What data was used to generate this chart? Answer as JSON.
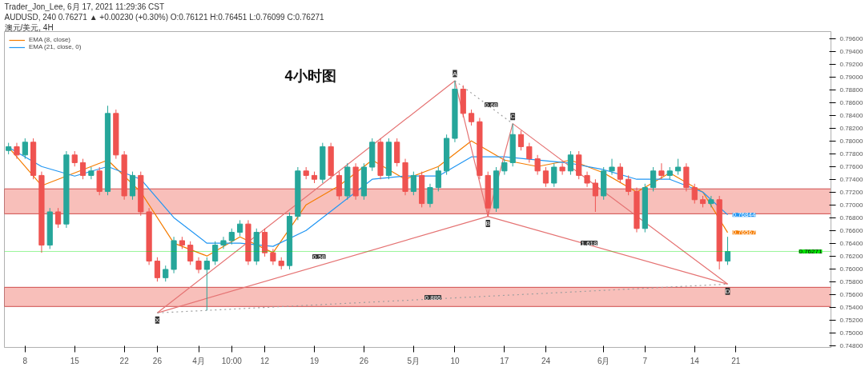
{
  "chart_data": {
    "type": "candlestick",
    "title": "4小时图",
    "categories": [
      null,
      null,
      "8",
      null,
      null,
      null,
      null,
      null,
      "15",
      null,
      null,
      null,
      null,
      null,
      "22",
      null,
      null,
      null,
      "26",
      null,
      null,
      null,
      null,
      "4月",
      null,
      null,
      null,
      "10:00",
      null,
      null,
      null,
      "12",
      null,
      null,
      null,
      null,
      null,
      "19",
      null,
      null,
      null,
      null,
      null,
      "26",
      null,
      null,
      null,
      null,
      null,
      "5月",
      null,
      null,
      null,
      null,
      "10",
      null,
      null,
      null,
      null,
      null,
      "17",
      null,
      null,
      null,
      null,
      "24",
      null,
      null,
      null,
      null,
      null,
      null,
      "6月",
      null,
      null,
      null,
      null,
      "7",
      null,
      null,
      null,
      null,
      null,
      "14",
      null,
      null,
      null,
      null,
      "21",
      null,
      null,
      null,
      null,
      null,
      null,
      null,
      null,
      null,
      null,
      null
    ],
    "ohlc": [
      [
        0.7785,
        0.7797,
        0.7779,
        0.7791
      ],
      [
        0.7791,
        0.7797,
        0.7772,
        0.7778
      ],
      [
        0.7778,
        0.7804,
        0.7772,
        0.7798
      ],
      [
        0.7798,
        0.7804,
        0.774,
        0.7746
      ],
      [
        0.7746,
        0.7752,
        0.7625,
        0.7637
      ],
      [
        0.7637,
        0.7695,
        0.7631,
        0.7689
      ],
      [
        0.7689,
        0.7695,
        0.7664,
        0.767
      ],
      [
        0.767,
        0.7784,
        0.7664,
        0.7778
      ],
      [
        0.7778,
        0.7784,
        0.776,
        0.7766
      ],
      [
        0.7766,
        0.7772,
        0.774,
        0.7746
      ],
      [
        0.7746,
        0.7759,
        0.774,
        0.7753
      ],
      [
        0.7753,
        0.7759,
        0.7715,
        0.7721
      ],
      [
        0.7721,
        0.7855,
        0.7715,
        0.7843
      ],
      [
        0.7843,
        0.7849,
        0.7772,
        0.7778
      ],
      [
        0.7778,
        0.7784,
        0.7708,
        0.7714
      ],
      [
        0.7714,
        0.7752,
        0.7708,
        0.7746
      ],
      [
        0.7746,
        0.7752,
        0.7683,
        0.7689
      ],
      [
        0.7689,
        0.7695,
        0.7606,
        0.7612
      ],
      [
        0.7612,
        0.7618,
        0.758,
        0.7586
      ],
      [
        0.7586,
        0.7605,
        0.758,
        0.7599
      ],
      [
        0.7599,
        0.765,
        0.7593,
        0.7644
      ],
      [
        0.7644,
        0.765,
        0.7631,
        0.7637
      ],
      [
        0.7637,
        0.7643,
        0.7606,
        0.7612
      ],
      [
        0.7612,
        0.7618,
        0.7593,
        0.7599
      ],
      [
        0.7599,
        0.7618,
        0.7535,
        0.7612
      ],
      [
        0.7612,
        0.7643,
        0.7606,
        0.7637
      ],
      [
        0.7637,
        0.765,
        0.7631,
        0.7644
      ],
      [
        0.7644,
        0.7663,
        0.7638,
        0.7657
      ],
      [
        0.7657,
        0.7676,
        0.7651,
        0.767
      ],
      [
        0.767,
        0.7676,
        0.7606,
        0.7612
      ],
      [
        0.7612,
        0.7663,
        0.7606,
        0.7657
      ],
      [
        0.7657,
        0.7663,
        0.7619,
        0.7625
      ],
      [
        0.7625,
        0.7631,
        0.7606,
        0.7612
      ],
      [
        0.7612,
        0.7618,
        0.7599,
        0.7605
      ],
      [
        0.7605,
        0.7688,
        0.7599,
        0.7682
      ],
      [
        0.7682,
        0.7759,
        0.7676,
        0.7753
      ],
      [
        0.7753,
        0.7759,
        0.774,
        0.7746
      ],
      [
        0.7746,
        0.7752,
        0.7734,
        0.774
      ],
      [
        0.774,
        0.7797,
        0.7734,
        0.7791
      ],
      [
        0.7791,
        0.7797,
        0.774,
        0.7746
      ],
      [
        0.7746,
        0.7752,
        0.7708,
        0.7714
      ],
      [
        0.7714,
        0.7765,
        0.7708,
        0.7759
      ],
      [
        0.7759,
        0.7765,
        0.7708,
        0.7714
      ],
      [
        0.7714,
        0.7765,
        0.7708,
        0.7759
      ],
      [
        0.7759,
        0.7804,
        0.7753,
        0.7798
      ],
      [
        0.7798,
        0.7804,
        0.774,
        0.7746
      ],
      [
        0.7746,
        0.7804,
        0.774,
        0.7798
      ],
      [
        0.7798,
        0.7804,
        0.776,
        0.7766
      ],
      [
        0.7766,
        0.7772,
        0.7715,
        0.7721
      ],
      [
        0.7721,
        0.7752,
        0.7715,
        0.7746
      ],
      [
        0.7746,
        0.7752,
        0.7696,
        0.7702
      ],
      [
        0.7702,
        0.7733,
        0.7696,
        0.7727
      ],
      [
        0.7727,
        0.7759,
        0.7721,
        0.7753
      ],
      [
        0.7753,
        0.781,
        0.7747,
        0.7804
      ],
      [
        0.7804,
        0.7894,
        0.7798,
        0.7881
      ],
      [
        0.7881,
        0.7887,
        0.7837,
        0.7843
      ],
      [
        0.7843,
        0.7849,
        0.7824,
        0.783
      ],
      [
        0.783,
        0.7836,
        0.774,
        0.7746
      ],
      [
        0.7746,
        0.7752,
        0.7682,
        0.7695
      ],
      [
        0.7695,
        0.7759,
        0.7689,
        0.7753
      ],
      [
        0.7753,
        0.7772,
        0.7747,
        0.7766
      ],
      [
        0.7766,
        0.7827,
        0.776,
        0.781
      ],
      [
        0.781,
        0.7816,
        0.7785,
        0.7791
      ],
      [
        0.7791,
        0.7797,
        0.7766,
        0.7772
      ],
      [
        0.7772,
        0.7778,
        0.7747,
        0.7753
      ],
      [
        0.7753,
        0.7759,
        0.7728,
        0.7734
      ],
      [
        0.7734,
        0.7765,
        0.7728,
        0.7759
      ],
      [
        0.7759,
        0.7765,
        0.7747,
        0.7753
      ],
      [
        0.7753,
        0.7784,
        0.7747,
        0.7778
      ],
      [
        0.7778,
        0.7784,
        0.774,
        0.7746
      ],
      [
        0.7746,
        0.7752,
        0.7728,
        0.7734
      ],
      [
        0.7734,
        0.774,
        0.7689,
        0.7714
      ],
      [
        0.7714,
        0.7759,
        0.7708,
        0.7753
      ],
      [
        0.7753,
        0.7772,
        0.7747,
        0.7759
      ],
      [
        0.7759,
        0.7765,
        0.7734,
        0.774
      ],
      [
        0.774,
        0.7746,
        0.7715,
        0.7721
      ],
      [
        0.7721,
        0.7727,
        0.7657,
        0.7663
      ],
      [
        0.7663,
        0.7733,
        0.7657,
        0.7727
      ],
      [
        0.7727,
        0.7759,
        0.7721,
        0.7753
      ],
      [
        0.7753,
        0.7765,
        0.774,
        0.7746
      ],
      [
        0.7746,
        0.7759,
        0.774,
        0.7753
      ],
      [
        0.7753,
        0.7772,
        0.7747,
        0.7759
      ],
      [
        0.7759,
        0.7765,
        0.7721,
        0.7727
      ],
      [
        0.7727,
        0.7733,
        0.7702,
        0.7708
      ],
      [
        0.7708,
        0.7714,
        0.7696,
        0.7702
      ],
      [
        0.7702,
        0.7714,
        0.7696,
        0.7708
      ],
      [
        0.7708,
        0.7714,
        0.7599,
        0.7612
      ],
      [
        0.7612,
        0.765,
        0.7606,
        0.7627
      ],
      null,
      null,
      null,
      null,
      null,
      null,
      null,
      null,
      null,
      null,
      null,
      null
    ],
    "series": [
      {
        "name": "EMA (8, close)",
        "type": "line",
        "color": "#f57c00",
        "values": [
          0.779,
          null,
          null,
          null,
          0.773,
          null,
          null,
          null,
          0.775,
          null,
          null,
          null,
          0.777,
          null,
          null,
          null,
          0.772,
          null,
          null,
          null,
          0.764,
          null,
          null,
          null,
          0.762,
          null,
          null,
          null,
          0.765,
          null,
          null,
          null,
          0.7625,
          null,
          null,
          null,
          0.77,
          null,
          null,
          null,
          0.773,
          null,
          null,
          null,
          0.777,
          null,
          null,
          null,
          0.774,
          null,
          null,
          null,
          0.776,
          null,
          null,
          null,
          0.78,
          null,
          null,
          null,
          0.777,
          null,
          null,
          null,
          0.776,
          null,
          null,
          null,
          0.777,
          null,
          null,
          null,
          0.775,
          null,
          null,
          null,
          0.772,
          null,
          null,
          null,
          0.775,
          null,
          null,
          null,
          0.772,
          null,
          null,
          0.76567,
          null,
          null,
          null,
          null,
          null,
          null,
          null,
          null,
          null,
          null,
          null,
          null
        ],
        "value_labels": [
          null,
          null,
          null,
          null,
          null,
          null,
          null,
          null,
          null,
          null,
          null,
          null,
          null,
          null,
          null,
          null,
          null,
          null,
          null,
          null,
          null,
          null,
          null,
          null,
          null,
          null,
          null,
          null,
          null,
          null,
          null,
          null,
          null,
          null,
          null,
          null,
          null,
          null,
          null,
          null,
          null,
          null,
          null,
          null,
          null,
          null,
          null,
          null,
          null,
          null,
          null,
          null,
          null,
          null,
          null,
          null,
          null,
          null,
          null,
          null,
          null,
          null,
          null,
          null,
          null,
          null,
          null,
          null,
          null,
          null,
          null,
          null,
          null,
          null,
          null,
          null,
          null,
          null,
          null,
          null,
          null,
          null,
          null,
          null,
          null,
          null,
          null,
          "0.76567",
          null,
          null,
          null,
          null,
          null,
          null,
          null,
          null,
          null,
          null,
          null,
          null
        ]
      },
      {
        "name": "EMA (21, close, 0)",
        "type": "line",
        "color": "#2196f3",
        "values": [
          0.779,
          null,
          null,
          null,
          0.776,
          null,
          null,
          null,
          0.7745,
          null,
          null,
          null,
          0.776,
          null,
          null,
          null,
          0.774,
          null,
          null,
          null,
          0.768,
          null,
          null,
          null,
          0.764,
          null,
          null,
          null,
          0.764,
          null,
          null,
          null,
          0.7635,
          null,
          null,
          null,
          0.766,
          null,
          null,
          null,
          0.77,
          null,
          null,
          null,
          0.774,
          null,
          null,
          null,
          0.7745,
          null,
          null,
          null,
          0.7745,
          null,
          null,
          null,
          0.7775,
          null,
          null,
          null,
          0.7775,
          null,
          null,
          null,
          0.777,
          null,
          null,
          null,
          0.7765,
          null,
          null,
          null,
          0.7755,
          null,
          null,
          null,
          0.774,
          null,
          null,
          null,
          0.774,
          null,
          null,
          null,
          0.772,
          null,
          null,
          0.76844,
          null,
          null,
          null,
          null,
          null,
          null,
          null,
          null,
          null,
          null,
          null,
          null
        ],
        "value_labels": [
          null,
          null,
          null,
          null,
          null,
          null,
          null,
          null,
          null,
          null,
          null,
          null,
          null,
          null,
          null,
          null,
          null,
          null,
          null,
          null,
          null,
          null,
          null,
          null,
          null,
          null,
          null,
          null,
          null,
          null,
          null,
          null,
          null,
          null,
          null,
          null,
          null,
          null,
          null,
          null,
          null,
          null,
          null,
          null,
          null,
          null,
          null,
          null,
          null,
          null,
          null,
          null,
          null,
          null,
          null,
          null,
          null,
          null,
          null,
          null,
          null,
          null,
          null,
          null,
          null,
          null,
          null,
          null,
          null,
          null,
          null,
          null,
          null,
          null,
          null,
          null,
          null,
          null,
          null,
          null,
          null,
          null,
          null,
          null,
          null,
          null,
          null,
          "0.76844",
          null,
          null,
          null,
          null,
          null,
          null,
          null,
          null,
          null,
          null,
          null,
          null
        ]
      },
      {
        "type": "line",
        "color": "#e57373",
        "values": [
          null,
          null,
          null,
          null,
          null,
          null,
          null,
          null,
          null,
          null,
          null,
          null,
          null,
          null,
          null,
          null,
          null,
          null,
          0.7531,
          null,
          null,
          null,
          null,
          null,
          null,
          null,
          null,
          null,
          null,
          null,
          null,
          null,
          null,
          null,
          null,
          null,
          null,
          null,
          null,
          null,
          null,
          null,
          null,
          null,
          null,
          null,
          null,
          null,
          null,
          null,
          null,
          null,
          null,
          null,
          0.7894,
          null,
          null,
          null,
          0.7682,
          null,
          null,
          0.7827,
          null,
          null,
          null,
          null,
          null,
          null,
          null,
          null,
          null,
          null,
          null,
          null,
          null,
          null,
          null,
          null,
          null,
          null,
          null,
          null,
          null,
          null,
          null,
          null,
          null,
          0.7576,
          null,
          null,
          null,
          null,
          null,
          null,
          null,
          null,
          null,
          null,
          null,
          null
        ],
        "value_labels": [
          null,
          null,
          null,
          null,
          null,
          null,
          null,
          null,
          null,
          null,
          null,
          null,
          null,
          null,
          null,
          null,
          null,
          null,
          "X",
          null,
          null,
          null,
          null,
          null,
          null,
          null,
          null,
          null,
          null,
          null,
          null,
          null,
          null,
          null,
          null,
          null,
          null,
          null,
          null,
          null,
          null,
          null,
          null,
          null,
          null,
          null,
          null,
          null,
          null,
          null,
          null,
          null,
          null,
          null,
          "A",
          null,
          null,
          null,
          "B",
          null,
          null,
          "C",
          null,
          null,
          null,
          null,
          null,
          null,
          null,
          null,
          null,
          null,
          null,
          null,
          null,
          null,
          null,
          null,
          null,
          null,
          null,
          null,
          null,
          null,
          null,
          null,
          null,
          "D",
          null,
          null,
          null,
          null,
          null,
          null,
          null,
          null,
          null,
          null,
          null,
          null
        ]
      },
      {
        "type": "line",
        "color": "#e57373",
        "values": [
          null,
          null,
          null,
          null,
          null,
          null,
          null,
          null,
          null,
          null,
          null,
          null,
          null,
          null,
          null,
          null,
          null,
          null,
          0.7531,
          null,
          null,
          null,
          null,
          null,
          null,
          null,
          null,
          null,
          null,
          null,
          null,
          null,
          null,
          null,
          null,
          null,
          null,
          null,
          null,
          null,
          null,
          null,
          null,
          null,
          null,
          null,
          null,
          null,
          null,
          null,
          null,
          null,
          null,
          null,
          null,
          null,
          null,
          null,
          0.7682,
          null,
          null,
          null,
          null,
          null,
          null,
          null,
          null,
          null,
          null,
          null,
          null,
          null,
          null,
          null,
          null,
          null,
          null,
          null,
          null,
          null,
          null,
          null,
          null,
          null,
          null,
          null,
          null,
          0.7576,
          null,
          null,
          null,
          null,
          null,
          null,
          null,
          null,
          null,
          null,
          null,
          null
        ]
      },
      {
        "type": "line",
        "color": "#9e9e9e",
        "line_style": "dotted",
        "values": [
          null,
          null,
          null,
          null,
          null,
          null,
          null,
          null,
          null,
          null,
          null,
          null,
          null,
          null,
          null,
          null,
          null,
          null,
          0.7531,
          null,
          null,
          null,
          null,
          null,
          null,
          null,
          null,
          null,
          null,
          null,
          null,
          null,
          null,
          null,
          null,
          null,
          null,
          null,
          null,
          null,
          null,
          null,
          null,
          null,
          null,
          null,
          null,
          null,
          null,
          null,
          null,
          null,
          null,
          null,
          null,
          null,
          null,
          null,
          null,
          null,
          null,
          null,
          null,
          null,
          null,
          null,
          null,
          null,
          null,
          null,
          null,
          null,
          null,
          null,
          null,
          null,
          null,
          null,
          null,
          null,
          null,
          null,
          null,
          null,
          null,
          null,
          null,
          0.7576,
          null,
          null,
          null,
          null,
          null,
          null,
          null,
          null,
          null,
          null,
          null,
          null
        ]
      },
      {
        "type": "line",
        "color": "#9e9e9e",
        "line_style": "dotted",
        "values": [
          null,
          null,
          null,
          null,
          null,
          null,
          null,
          null,
          null,
          null,
          null,
          null,
          null,
          null,
          null,
          null,
          null,
          null,
          null,
          null,
          null,
          null,
          null,
          null,
          null,
          null,
          null,
          null,
          null,
          null,
          null,
          null,
          null,
          null,
          null,
          null,
          null,
          null,
          null,
          null,
          null,
          null,
          null,
          null,
          null,
          null,
          null,
          null,
          null,
          null,
          null,
          null,
          null,
          null,
          0.7894,
          null,
          null,
          null,
          null,
          null,
          null,
          0.7827,
          null,
          null,
          null,
          null,
          null,
          null,
          null,
          null,
          null,
          null,
          null,
          null,
          null,
          null,
          null,
          null,
          null,
          null,
          null,
          null,
          null,
          null,
          null,
          null,
          null,
          null,
          null,
          null,
          null,
          null,
          null,
          null,
          null,
          null,
          null,
          null,
          null,
          null
        ]
      }
    ],
    "bands": [
      {
        "axis": "y",
        "from": 0.7541,
        "to": 0.7571,
        "color": "#f28b82"
      },
      {
        "axis": "y",
        "from": 0.7686,
        "to": 0.7725,
        "color": "#f28b82"
      }
    ],
    "ref_lines": [
      {
        "axis": "y",
        "value": 0.76271,
        "label": "0.76271",
        "color": "#00e600"
      }
    ],
    "annotations": [
      "Trader_Jon_Lee, 6月 17, 2021 11:29:36 CST",
      "AUDUSD, 240  0.76271 ▲ +0.00230 (+0.30%) O:0.76121 H:0.76451 L:0.76099 C:0.76271",
      "澳元/美元, 4H",
      "0.58",
      "0.68",
      "1.618",
      "0.886"
    ],
    "ylim": [
      0.7477,
      0.7971
    ],
    "yticks": [
      {
        "value": 0.748,
        "label": "0.74800"
      },
      {
        "value": 0.75,
        "label": "0.75000"
      },
      {
        "value": 0.752,
        "label": "0.75200"
      },
      {
        "value": 0.754,
        "label": "0.75400"
      },
      {
        "value": 0.756,
        "label": "0.75600"
      },
      {
        "value": 0.758,
        "label": "0.75800"
      },
      {
        "value": 0.76,
        "label": "0.76000"
      },
      {
        "value": 0.762,
        "label": "0.76200"
      },
      {
        "value": 0.764,
        "label": "0.76400"
      },
      {
        "value": 0.766,
        "label": "0.76600"
      },
      {
        "value": 0.768,
        "label": "0.76800"
      },
      {
        "value": 0.77,
        "label": "0.77000"
      },
      {
        "value": 0.772,
        "label": "0.77200"
      },
      {
        "value": 0.774,
        "label": "0.77400"
      },
      {
        "value": 0.776,
        "label": "0.77600"
      },
      {
        "value": 0.778,
        "label": "0.77800"
      },
      {
        "value": 0.78,
        "label": "0.78000"
      },
      {
        "value": 0.782,
        "label": "0.78200"
      },
      {
        "value": 0.784,
        "label": "0.78400"
      },
      {
        "value": 0.786,
        "label": "0.78600"
      },
      {
        "value": 0.788,
        "label": "0.78800"
      },
      {
        "value": 0.79,
        "label": "0.79000"
      },
      {
        "value": 0.792,
        "label": "0.79200"
      },
      {
        "value": 0.794,
        "label": "0.79400"
      },
      {
        "value": 0.796,
        "label": "0.79600"
      }
    ],
    "grid": false,
    "legend": "top left"
  }
}
